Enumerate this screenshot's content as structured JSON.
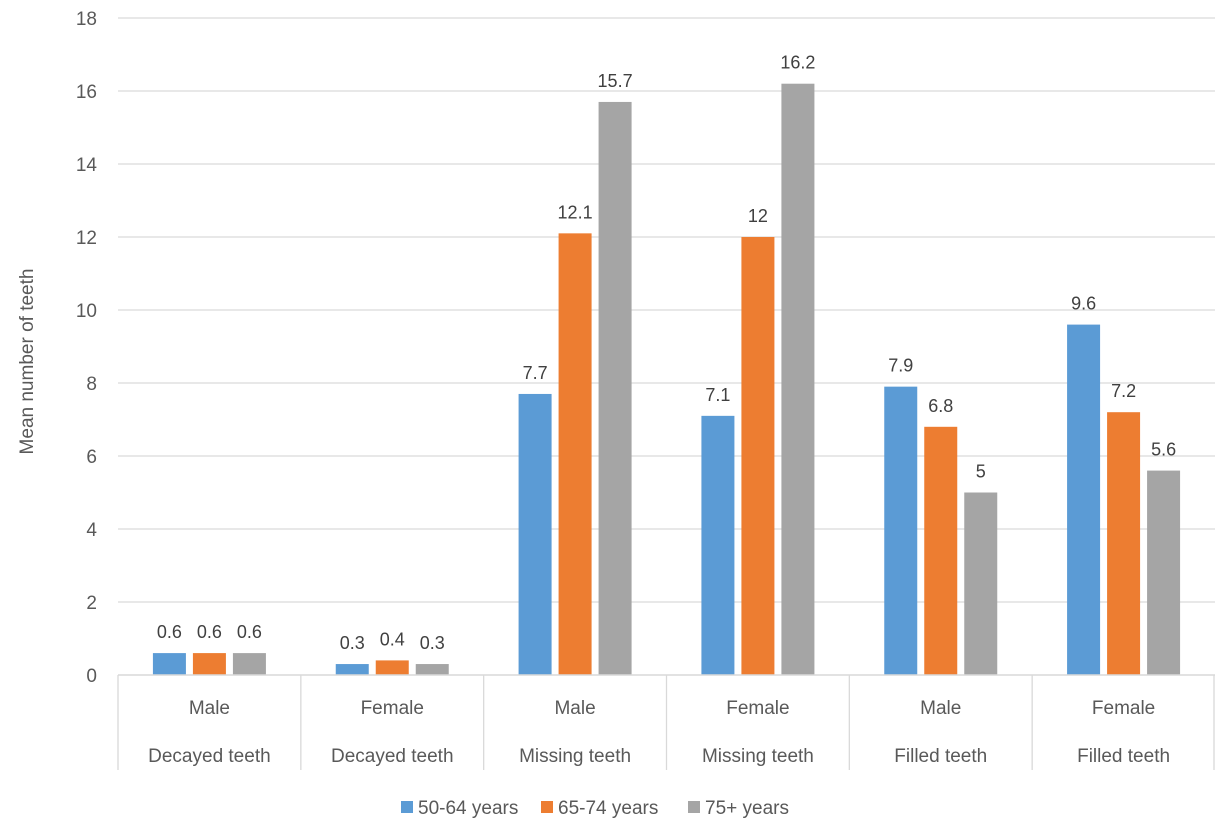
{
  "chart_data": {
    "type": "bar",
    "title": "",
    "xlabel": "",
    "ylabel": "Mean number of  teeth",
    "ylim": [
      0,
      18
    ],
    "yticks": [
      0,
      2,
      4,
      6,
      8,
      10,
      12,
      14,
      16,
      18
    ],
    "grid": true,
    "legend_position": "bottom",
    "categories": [
      {
        "sub": "Male",
        "group": "Decayed teeth"
      },
      {
        "sub": "Female",
        "group": "Decayed teeth"
      },
      {
        "sub": "Male",
        "group": "Missing teeth"
      },
      {
        "sub": "Female",
        "group": "Missing teeth"
      },
      {
        "sub": "Male",
        "group": "Filled teeth"
      },
      {
        "sub": "Female",
        "group": "Filled teeth"
      }
    ],
    "series": [
      {
        "name": "50-64 years",
        "color": "#5B9BD5",
        "values": [
          0.6,
          0.3,
          7.7,
          7.1,
          7.9,
          9.6
        ]
      },
      {
        "name": "65-74 years",
        "color": "#ED7D31",
        "values": [
          0.6,
          0.4,
          12.1,
          12,
          6.8,
          7.2
        ]
      },
      {
        "name": "75+ years",
        "color": "#A5A5A5",
        "values": [
          0.6,
          0.3,
          15.7,
          16.2,
          5,
          5.6
        ]
      }
    ]
  }
}
